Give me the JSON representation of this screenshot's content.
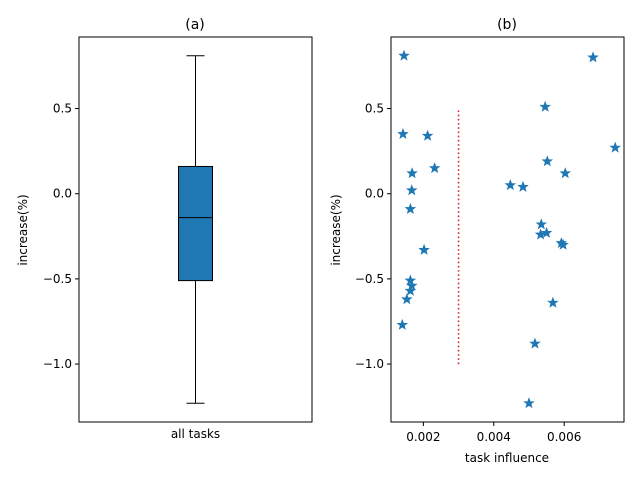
{
  "colors": {
    "box_fill": "#1f77b4",
    "marker": "#1f77b4",
    "dotted_line": "#d62728",
    "axes": "#000000"
  },
  "chart_data": [
    {
      "type": "box",
      "title": "(a)",
      "xlabel": "",
      "ylabel": "increase(%)",
      "categories": [
        "all tasks"
      ],
      "ylim": [
        -1.34,
        0.92
      ],
      "yticks": [
        -1.0,
        -0.5,
        0.0,
        0.5
      ],
      "ytick_labels": [
        "−1.0",
        "−0.5",
        "0.0",
        "0.5"
      ],
      "box": {
        "whisker_low": -1.23,
        "q1": -0.51,
        "median": -0.14,
        "q3": 0.16,
        "whisker_high": 0.81
      },
      "grid": false
    },
    {
      "type": "scatter",
      "title": "(b)",
      "xlabel": "task influence",
      "ylabel": "increase(%)",
      "marker": "star",
      "xlim": [
        0.00108,
        0.0077
      ],
      "ylim": [
        -1.34,
        0.92
      ],
      "xticks": [
        0.002,
        0.004,
        0.006
      ],
      "xtick_labels": [
        "0.002",
        "0.004",
        "0.006"
      ],
      "yticks": [
        -1.0,
        -0.5,
        0.0,
        0.5
      ],
      "ytick_labels": [
        "−1.0",
        "−0.5",
        "0.0",
        "0.5"
      ],
      "grid": false,
      "reference_line": {
        "x": 0.003,
        "y_from": -1.0,
        "y_to": 0.5,
        "style": "dotted"
      },
      "points": [
        {
          "x": 0.00145,
          "y": 0.81
        },
        {
          "x": 0.00142,
          "y": 0.35
        },
        {
          "x": 0.00212,
          "y": 0.34
        },
        {
          "x": 0.00232,
          "y": 0.15
        },
        {
          "x": 0.00168,
          "y": 0.12
        },
        {
          "x": 0.00167,
          "y": 0.02
        },
        {
          "x": 0.00163,
          "y": -0.09
        },
        {
          "x": 0.00202,
          "y": -0.33
        },
        {
          "x": 0.00163,
          "y": -0.51
        },
        {
          "x": 0.00167,
          "y": -0.54
        },
        {
          "x": 0.00163,
          "y": -0.57
        },
        {
          "x": 0.00153,
          "y": -0.62
        },
        {
          "x": 0.0014,
          "y": -0.77
        },
        {
          "x": 0.00447,
          "y": 0.05
        },
        {
          "x": 0.00483,
          "y": 0.04
        },
        {
          "x": 0.00546,
          "y": 0.51
        },
        {
          "x": 0.00552,
          "y": 0.19
        },
        {
          "x": 0.00603,
          "y": 0.12
        },
        {
          "x": 0.00535,
          "y": -0.18
        },
        {
          "x": 0.00533,
          "y": -0.24
        },
        {
          "x": 0.0055,
          "y": -0.23
        },
        {
          "x": 0.00592,
          "y": -0.29
        },
        {
          "x": 0.00597,
          "y": -0.3
        },
        {
          "x": 0.00568,
          "y": -0.64
        },
        {
          "x": 0.00517,
          "y": -0.88
        },
        {
          "x": 0.005,
          "y": -1.23
        },
        {
          "x": 0.00682,
          "y": 0.8
        },
        {
          "x": 0.00745,
          "y": 0.27
        }
      ]
    }
  ]
}
